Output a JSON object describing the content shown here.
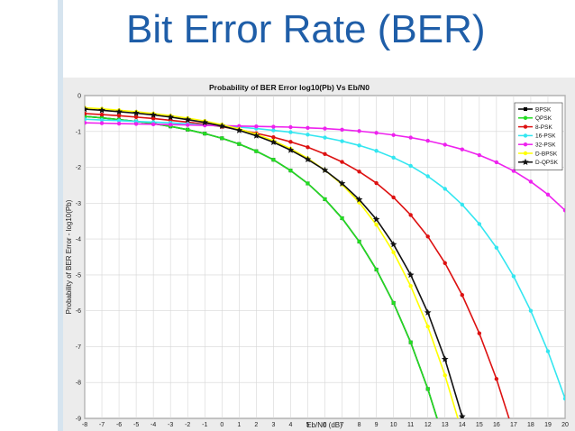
{
  "slide": {
    "title": "Bit Error Rate (BER)"
  },
  "chart_data": {
    "type": "line",
    "title": "Probability of BER Error log10(Pb) Vs Eb/N0",
    "xlabel": "Eb/N0 (dB)",
    "ylabel": "Probability of BER Error - log10(Pb)",
    "xlim": [
      -8,
      20
    ],
    "ylim": [
      -9,
      0
    ],
    "grid": true,
    "legend_position": "top-right",
    "x_ticks": [
      -8,
      -7,
      -6,
      -5,
      -4,
      -3,
      -2,
      -1,
      0,
      1,
      2,
      3,
      4,
      5,
      6,
      7,
      8,
      9,
      10,
      11,
      12,
      13,
      14,
      15,
      16,
      17,
      18,
      19,
      20
    ],
    "y_ticks": [
      0,
      -1,
      -2,
      -3,
      -4,
      -5,
      -6,
      -7,
      -8,
      -9
    ],
    "x": [
      -8,
      -7,
      -6,
      -5,
      -4,
      -3,
      -2,
      -1,
      0,
      1,
      2,
      3,
      4,
      5,
      6,
      7,
      8,
      9,
      10,
      11,
      12,
      13,
      14,
      15,
      16,
      17,
      18,
      19,
      20
    ],
    "series": [
      {
        "name": "BPSK",
        "color": "#000000",
        "marker": "square",
        "values": [
          -0.58,
          -0.62,
          -0.67,
          -0.72,
          -0.78,
          -0.86,
          -0.95,
          -1.06,
          -1.19,
          -1.35,
          -1.55,
          -1.79,
          -2.09,
          -2.45,
          -2.89,
          -3.42,
          -4.07,
          -4.85,
          -5.78,
          -6.88,
          -8.18,
          -9.7,
          null,
          null,
          null,
          null,
          null,
          null,
          null
        ]
      },
      {
        "name": "QPSK",
        "color": "#22dd22",
        "marker": "circle",
        "values": [
          -0.58,
          -0.62,
          -0.67,
          -0.72,
          -0.78,
          -0.86,
          -0.95,
          -1.06,
          -1.19,
          -1.35,
          -1.55,
          -1.79,
          -2.09,
          -2.45,
          -2.89,
          -3.42,
          -4.07,
          -4.85,
          -5.78,
          -6.88,
          -8.18,
          -9.7,
          null,
          null,
          null,
          null,
          null,
          null,
          null
        ]
      },
      {
        "name": "8-PSK",
        "color": "#dd1111",
        "marker": "circle",
        "values": [
          -0.5,
          -0.53,
          -0.56,
          -0.6,
          -0.64,
          -0.69,
          -0.74,
          -0.8,
          -0.87,
          -0.95,
          -1.05,
          -1.16,
          -1.29,
          -1.44,
          -1.63,
          -1.85,
          -2.12,
          -2.44,
          -2.84,
          -3.33,
          -3.93,
          -4.67,
          -5.56,
          -6.63,
          -7.9,
          -9.4,
          null,
          null,
          null
        ]
      },
      {
        "name": "16-PSK",
        "color": "#33e6f0",
        "marker": "circle",
        "values": [
          -0.66,
          -0.68,
          -0.7,
          -0.72,
          -0.74,
          -0.76,
          -0.79,
          -0.82,
          -0.85,
          -0.88,
          -0.92,
          -0.97,
          -1.02,
          -1.09,
          -1.17,
          -1.27,
          -1.39,
          -1.54,
          -1.73,
          -1.96,
          -2.25,
          -2.6,
          -3.04,
          -3.58,
          -4.24,
          -5.04,
          -6.0,
          -7.13,
          -8.45
        ]
      },
      {
        "name": "32-PSK",
        "color": "#ee22ee",
        "marker": "circle",
        "values": [
          -0.76,
          -0.77,
          -0.78,
          -0.79,
          -0.8,
          -0.81,
          -0.82,
          -0.83,
          -0.84,
          -0.85,
          -0.86,
          -0.87,
          -0.88,
          -0.9,
          -0.92,
          -0.95,
          -0.99,
          -1.04,
          -1.1,
          -1.17,
          -1.26,
          -1.37,
          -1.5,
          -1.66,
          -1.86,
          -2.1,
          -2.4,
          -2.76,
          -3.2
        ]
      },
      {
        "name": "D-BPSK",
        "color": "#ffff00",
        "marker": "circle",
        "values": [
          -0.34,
          -0.37,
          -0.41,
          -0.45,
          -0.5,
          -0.56,
          -0.63,
          -0.71,
          -0.81,
          -0.93,
          -1.08,
          -1.26,
          -1.48,
          -1.75,
          -2.08,
          -2.48,
          -2.98,
          -3.6,
          -4.37,
          -5.31,
          -6.44,
          -7.8,
          -9.4,
          null,
          null,
          null,
          null,
          null,
          null
        ]
      },
      {
        "name": "D-QPSK",
        "color": "#111111",
        "marker": "star",
        "values": [
          -0.38,
          -0.41,
          -0.45,
          -0.49,
          -0.54,
          -0.6,
          -0.67,
          -0.75,
          -0.85,
          -0.97,
          -1.12,
          -1.3,
          -1.52,
          -1.78,
          -2.08,
          -2.45,
          -2.9,
          -3.45,
          -4.15,
          -5.0,
          -6.05,
          -7.35,
          -8.95,
          null,
          null,
          null,
          null,
          null,
          null
        ]
      }
    ]
  }
}
